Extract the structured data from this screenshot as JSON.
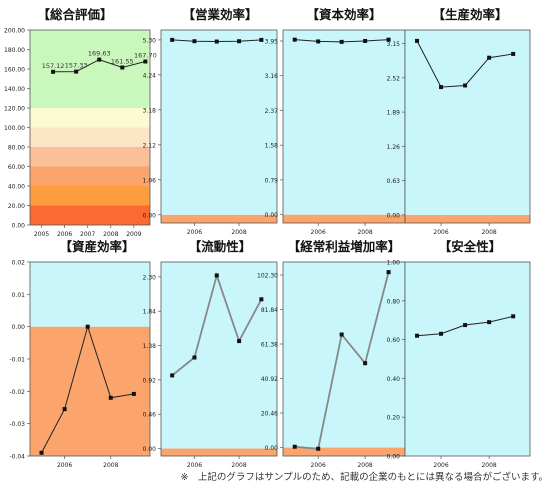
{
  "footnote": "※　上記のグラフはサンプルのため、記載の企業のもとには異なる場合がございます。",
  "chart_data": [
    {
      "type": "line",
      "title": "【総合評価】",
      "x": [
        2005,
        2006,
        2007,
        2008,
        2009
      ],
      "x_ticks": [
        2005,
        2006,
        2007,
        2008,
        2009
      ],
      "x_points": [
        2005.5,
        2006.5,
        2007.5,
        2008.5,
        2009.5
      ],
      "series": [
        {
          "values": [
            157.12,
            157.33,
            169.63,
            161.55,
            167.7
          ]
        }
      ],
      "data_labels": [
        "157.12",
        "157.33",
        "169.63",
        "161.55",
        "167.70"
      ],
      "ylim": [
        0,
        200
      ],
      "y_ticks": [
        "0.00",
        "20.00",
        "40.00",
        "60.00",
        "80.00",
        "100.00",
        "120.00",
        "140.00",
        "160.00",
        "180.00",
        "200.00"
      ],
      "bands": [
        {
          "from": 0,
          "to": 20,
          "color": "#fa6a32"
        },
        {
          "from": 20,
          "to": 40,
          "color": "#fc9d3e"
        },
        {
          "from": 40,
          "to": 60,
          "color": "#fba46c"
        },
        {
          "from": 60,
          "to": 80,
          "color": "#fbc09a"
        },
        {
          "from": 80,
          "to": 100,
          "color": "#fde6c6"
        },
        {
          "from": 100,
          "to": 120,
          "color": "#fcfad2"
        },
        {
          "from": 120,
          "to": 200,
          "color": "#c9f7bc"
        }
      ]
    },
    {
      "type": "line",
      "title": "【営業効率】",
      "x_ticks": [
        2006,
        2008
      ],
      "x_points": [
        2005,
        2006,
        2007,
        2008,
        2009
      ],
      "series": [
        {
          "values": [
            5.3,
            5.26,
            5.25,
            5.26,
            5.3
          ]
        }
      ],
      "ylim": [
        -0.25,
        5.6
      ],
      "y_ticks": [
        "0.00",
        "1.06",
        "2.12",
        "3.18",
        "4.24",
        "5.30"
      ],
      "bands": [
        {
          "from": -0.25,
          "to": 0,
          "color": "#fba46c"
        },
        {
          "from": 0,
          "to": 5.6,
          "color": "#c8f6fa"
        }
      ]
    },
    {
      "type": "line",
      "title": "【資本効率】",
      "x_ticks": [
        2006,
        2008
      ],
      "x_points": [
        2005,
        2006,
        2007,
        2008,
        2009
      ],
      "series": [
        {
          "values": [
            3.98,
            3.94,
            3.93,
            3.95,
            3.98
          ]
        }
      ],
      "ylim": [
        -0.19,
        4.2
      ],
      "y_ticks": [
        "0.00",
        "0.79",
        "1.58",
        "2.37",
        "3.16",
        "3.95"
      ],
      "bands": [
        {
          "from": -0.19,
          "to": 0,
          "color": "#fba46c"
        },
        {
          "from": 0,
          "to": 4.2,
          "color": "#c8f6fa"
        }
      ]
    },
    {
      "type": "line",
      "title": "【生産効率】",
      "x_ticks": [
        2006,
        2008
      ],
      "x_points": [
        2005,
        2006,
        2007,
        2008,
        2009
      ],
      "series": [
        {
          "values": [
            3.2,
            2.35,
            2.38,
            2.89,
            2.96
          ]
        }
      ],
      "ylim": [
        -0.15,
        3.4
      ],
      "y_ticks": [
        "0.00",
        "0.63",
        "1.26",
        "1.89",
        "2.52",
        "3.15"
      ],
      "bands": [
        {
          "from": -0.15,
          "to": 0,
          "color": "#fba46c"
        },
        {
          "from": 0,
          "to": 3.4,
          "color": "#c8f6fa"
        }
      ]
    },
    {
      "type": "line",
      "title": "【資産効率】",
      "x_ticks": [
        2006,
        2008
      ],
      "x_points": [
        2005,
        2006,
        2007,
        2008,
        2009
      ],
      "series": [
        {
          "values": [
            -0.039,
            -0.0255,
            0.0,
            -0.022,
            -0.0208
          ]
        }
      ],
      "ylim": [
        -0.04,
        0.02
      ],
      "y_ticks": [
        "-0.04",
        "-0.03",
        "-0.02",
        "-0.01",
        "0.00",
        "0.01",
        "0.02"
      ],
      "bands": [
        {
          "from": -0.04,
          "to": 0,
          "color": "#fba46c"
        },
        {
          "from": 0,
          "to": 0.02,
          "color": "#c8f6fa"
        }
      ]
    },
    {
      "type": "line",
      "title": "【流動性】",
      "x_ticks": [
        2006,
        2008
      ],
      "x_points": [
        2005,
        2006,
        2007,
        2008,
        2009
      ],
      "series": [
        {
          "values": [
            0.98,
            1.22,
            2.32,
            1.44,
            2.0
          ]
        }
      ],
      "ylim": [
        -0.1,
        2.5
      ],
      "y_ticks": [
        "0.00",
        "0.46",
        "0.92",
        "1.38",
        "1.84",
        "2.30"
      ],
      "bands": [
        {
          "from": -0.1,
          "to": 0,
          "color": "#fba46c"
        },
        {
          "from": 0,
          "to": 2.5,
          "color": "#c8f6fa"
        }
      ]
    },
    {
      "type": "line",
      "title": "【経常利益増加率】",
      "x_ticks": [
        2006,
        2008
      ],
      "x_points": [
        2005,
        2006,
        2007,
        2008,
        2009
      ],
      "series": [
        {
          "values": [
            0.5,
            -0.7,
            67.0,
            50.0,
            104.0
          ]
        }
      ],
      "ylim": [
        -5,
        110
      ],
      "y_ticks": [
        "0.00",
        "20.46",
        "40.92",
        "61.38",
        "81.84",
        "102.30"
      ],
      "bands": [
        {
          "from": -5,
          "to": 0,
          "color": "#fba46c"
        },
        {
          "from": 0,
          "to": 110,
          "color": "#c8f6fa"
        }
      ]
    },
    {
      "type": "line",
      "title": "【安全性】",
      "x_ticks": [
        2006,
        2008
      ],
      "x_points": [
        2005,
        2006,
        2007,
        2008,
        2009
      ],
      "series": [
        {
          "values": [
            0.62,
            0.63,
            0.675,
            0.69,
            0.72
          ]
        }
      ],
      "ylim": [
        0,
        1.0
      ],
      "y_ticks": [
        "0.00",
        "0.20",
        "0.40",
        "0.60",
        "0.80",
        "1.00"
      ],
      "bands": [
        {
          "from": 0,
          "to": 1.0,
          "color": "#c8f6fa"
        }
      ]
    }
  ]
}
